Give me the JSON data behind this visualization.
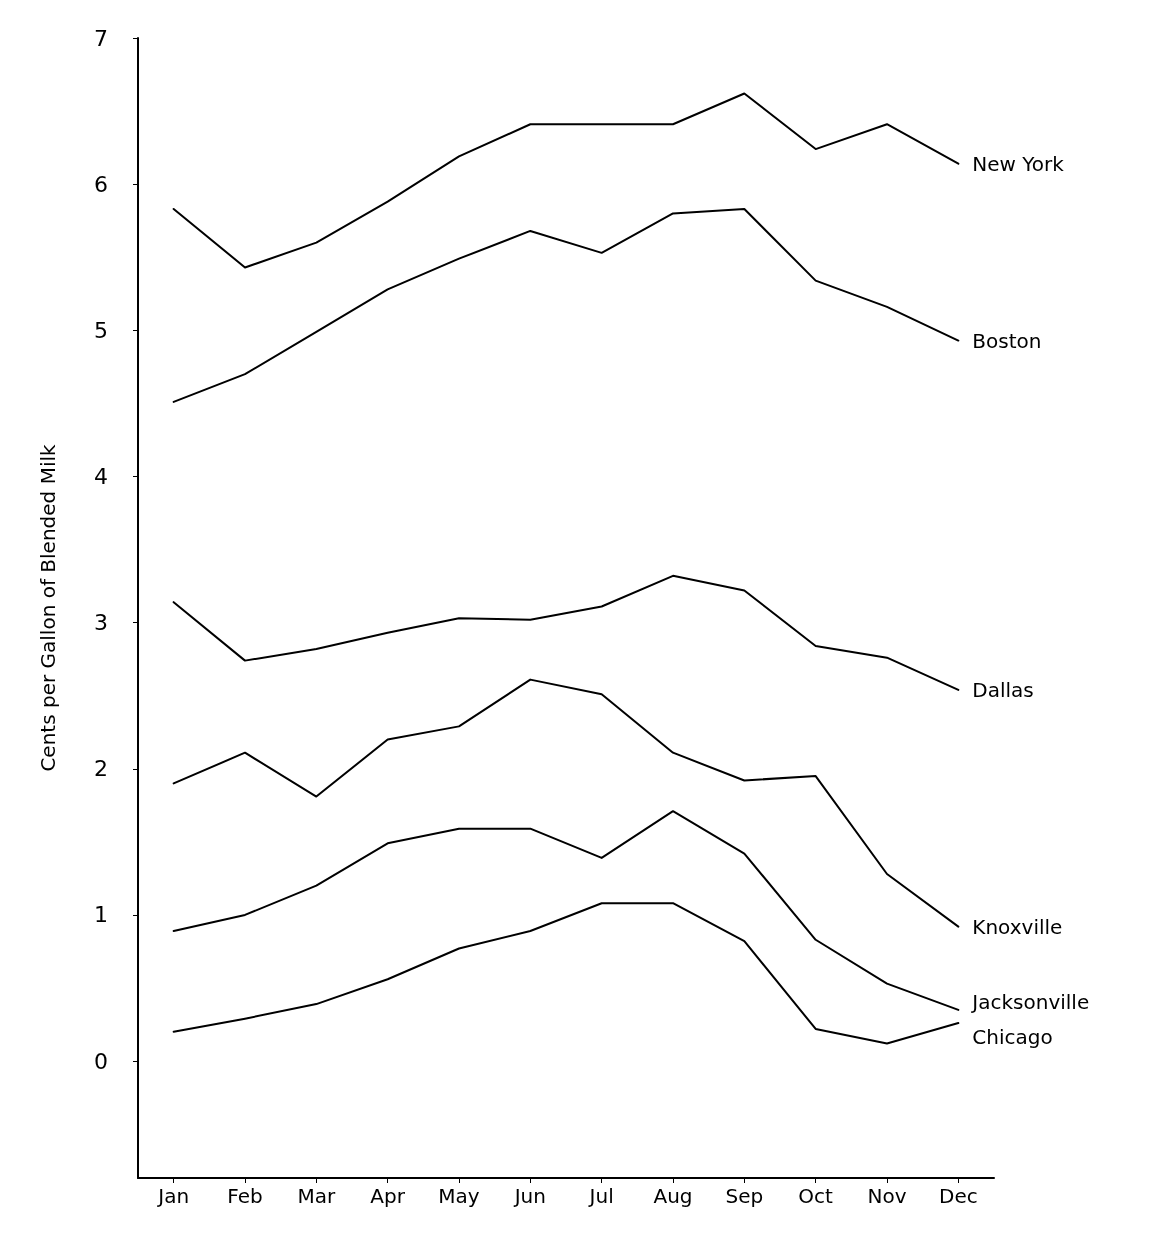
{
  "chart_data": {
    "type": "line",
    "ylabel": "Cents per Gallon of Blended Milk",
    "categories": [
      "Jan",
      "Feb",
      "Mar",
      "Apr",
      "May",
      "Jun",
      "Jul",
      "Aug",
      "Sep",
      "Oct",
      "Nov",
      "Dec"
    ],
    "ylim": [
      -0.8,
      7
    ],
    "yticks": [
      0,
      1,
      2,
      3,
      4,
      5,
      6,
      7
    ],
    "grid": false,
    "legend": false,
    "marker": "none",
    "line_style": "solid",
    "series": [
      {
        "name": "New York",
        "color": "#000000",
        "values": [
          5.83,
          5.43,
          5.6,
          5.88,
          6.19,
          6.41,
          6.41,
          6.41,
          6.62,
          6.24,
          6.41,
          6.14
        ]
      },
      {
        "name": "Boston",
        "color": "#000000",
        "values": [
          4.51,
          4.7,
          4.99,
          5.28,
          5.49,
          5.68,
          5.53,
          5.8,
          5.83,
          5.34,
          5.16,
          4.93
        ]
      },
      {
        "name": "Dallas",
        "color": "#000000",
        "values": [
          3.14,
          2.74,
          2.82,
          2.93,
          3.03,
          3.02,
          3.11,
          3.32,
          3.22,
          2.84,
          2.76,
          2.54
        ]
      },
      {
        "name": "Knoxville",
        "color": "#000000",
        "values": [
          1.9,
          2.11,
          1.81,
          2.2,
          2.29,
          2.61,
          2.51,
          2.11,
          1.92,
          1.95,
          1.28,
          0.92
        ]
      },
      {
        "name": "Jacksonville",
        "color": "#000000",
        "values": [
          0.89,
          1.0,
          1.2,
          1.49,
          1.59,
          1.59,
          1.39,
          1.71,
          1.42,
          0.83,
          0.53,
          0.35
        ]
      },
      {
        "name": "Chicago",
        "color": "#000000",
        "values": [
          0.2,
          0.29,
          0.39,
          0.56,
          0.77,
          0.89,
          1.08,
          1.08,
          0.82,
          0.22,
          0.12,
          0.26
        ]
      }
    ]
  }
}
